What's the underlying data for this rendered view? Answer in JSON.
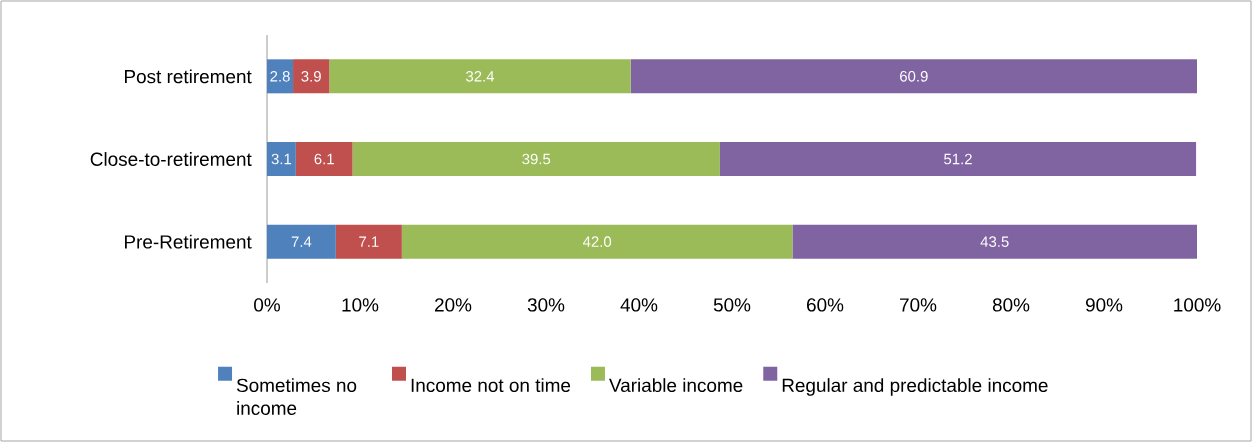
{
  "chart_data": {
    "type": "bar",
    "orientation": "horizontal",
    "stacked": true,
    "legend": "bottom",
    "grid": false,
    "categories": [
      "Post retirement",
      "Close-to-retirement",
      "Pre-Retirement"
    ],
    "series": [
      {
        "name": "Sometimes no income",
        "color": "#4f81bd",
        "values": [
          2.8,
          3.1,
          7.4
        ],
        "value_labels": [
          "2.8",
          "3.1",
          "7.4"
        ]
      },
      {
        "name": "Income not on time",
        "color": "#c0504d",
        "values": [
          3.9,
          6.1,
          7.1
        ],
        "value_labels": [
          "3.9",
          "6.1",
          "7.1"
        ]
      },
      {
        "name": "Variable income",
        "color": "#9bbb59",
        "values": [
          32.4,
          39.5,
          42.0
        ],
        "value_labels": [
          "32.4",
          "39.5",
          "42.0"
        ]
      },
      {
        "name": "Regular and predictable income",
        "color": "#8064a2",
        "values": [
          60.9,
          51.2,
          43.5
        ],
        "value_labels": [
          "60.9",
          "51.2",
          "43.5"
        ]
      }
    ],
    "xlim": [
      0,
      100
    ],
    "xticks": [
      {
        "value": 0,
        "label": "0%"
      },
      {
        "value": 10,
        "label": "10%"
      },
      {
        "value": 20,
        "label": "20%"
      },
      {
        "value": 30,
        "label": "30%"
      },
      {
        "value": 40,
        "label": "40%"
      },
      {
        "value": 50,
        "label": "50%"
      },
      {
        "value": 60,
        "label": "60%"
      },
      {
        "value": 70,
        "label": "70%"
      },
      {
        "value": 80,
        "label": "80%"
      },
      {
        "value": 90,
        "label": "90%"
      },
      {
        "value": 100,
        "label": "100%"
      }
    ]
  }
}
